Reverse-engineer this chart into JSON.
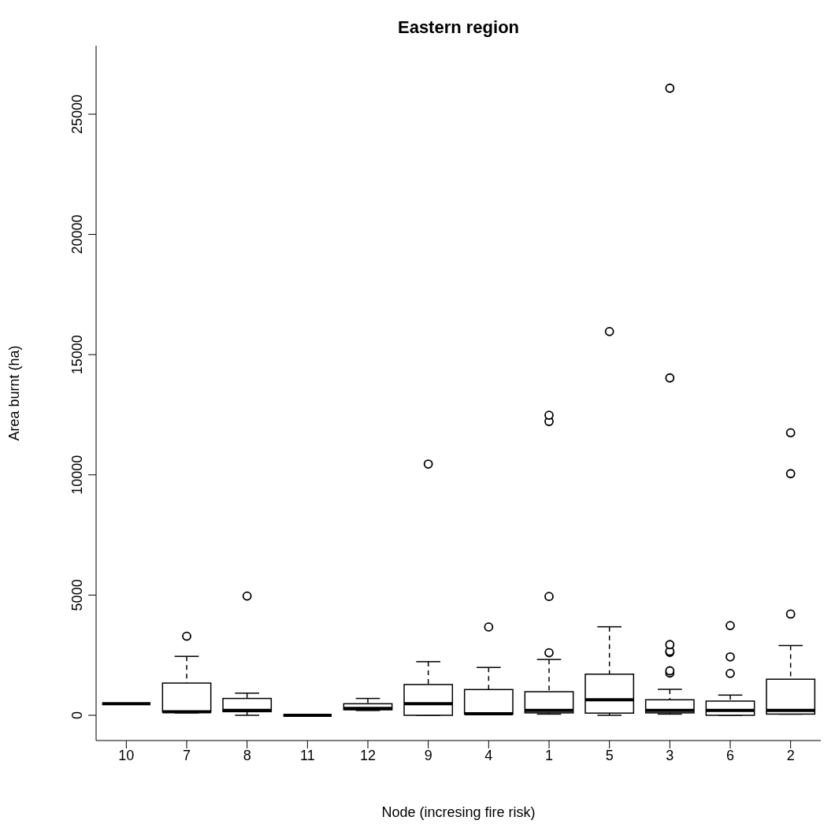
{
  "chart_data": {
    "type": "box",
    "title": "Eastern region",
    "xlabel": "Node (incresing fire risk)",
    "ylabel": "Area burnt (ha)",
    "categories": [
      "10",
      "7",
      "8",
      "11",
      "12",
      "9",
      "4",
      "1",
      "5",
      "3",
      "6",
      "2"
    ],
    "ylim": [
      -1050,
      27850
    ],
    "yticks": [
      0,
      5000,
      10000,
      15000,
      20000,
      25000
    ],
    "boxes": [
      {
        "low": 480,
        "q1": 480,
        "median": 480,
        "q3": 480,
        "high": 480
      },
      {
        "low": 100,
        "q1": 130,
        "median": 150,
        "q3": 1340,
        "high": 2450,
        "outliers": [
          3290
        ]
      },
      {
        "low": 0,
        "q1": 150,
        "median": 200,
        "q3": 700,
        "high": 920,
        "outliers": [
          4960
        ]
      },
      {
        "low": 0,
        "q1": 0,
        "median": 0,
        "q3": 0,
        "high": 0
      },
      {
        "low": 200,
        "q1": 230,
        "median": 285,
        "q3": 480,
        "high": 700
      },
      {
        "low": 0,
        "q1": 0,
        "median": 480,
        "q3": 1280,
        "high": 2230,
        "outliers": [
          10450
        ]
      },
      {
        "low": 40,
        "q1": 50,
        "median": 65,
        "q3": 1070,
        "high": 1990,
        "outliers": [
          3670
        ]
      },
      {
        "low": 50,
        "q1": 100,
        "median": 205,
        "q3": 980,
        "high": 2320,
        "outliers": [
          2600,
          4940,
          12220,
          12480
        ]
      },
      {
        "low": 0,
        "q1": 90,
        "median": 645,
        "q3": 1710,
        "high": 3680,
        "outliers": [
          15960
        ]
      },
      {
        "low": 50,
        "q1": 100,
        "median": 205,
        "q3": 645,
        "high": 1080,
        "outliers": [
          1760,
          1850,
          2620,
          2660,
          2940,
          14030,
          26080
        ]
      },
      {
        "low": 0,
        "q1": 0,
        "median": 205,
        "q3": 590,
        "high": 840,
        "outliers": [
          1740,
          2430,
          3730
        ]
      },
      {
        "low": 50,
        "q1": 50,
        "median": 205,
        "q3": 1500,
        "high": 2900,
        "outliers": [
          4210,
          10050,
          11750
        ]
      }
    ]
  }
}
